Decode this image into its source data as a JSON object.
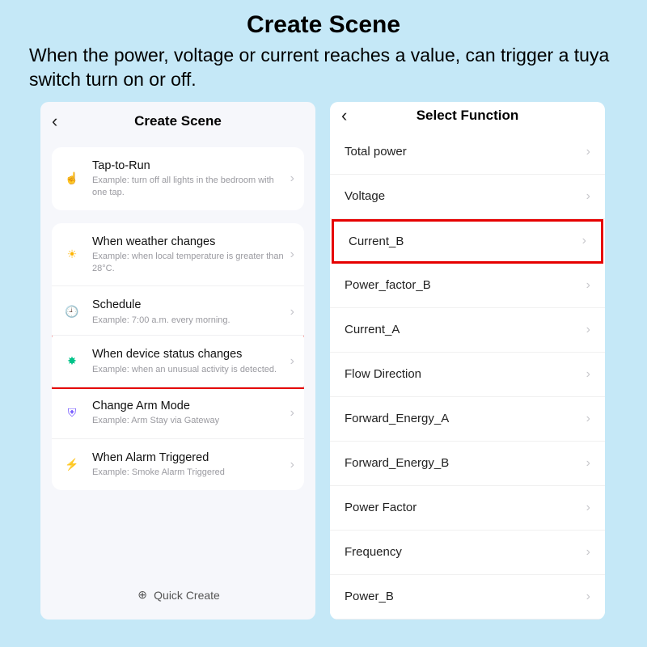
{
  "page": {
    "title": "Create Scene",
    "subtitle": "When the power, voltage or current reaches a value, can trigger a tuya switch turn on or off."
  },
  "colors": {
    "bg": "#c5e8f7",
    "highlight": "#e60000"
  },
  "left": {
    "header": "Create Scene",
    "quick_create": "Quick Create",
    "group1": [
      {
        "title": "Tap-to-Run",
        "sub": "Example: turn off all lights in the bedroom with one tap.",
        "icon": "tap",
        "icon_color": "#ff7a45"
      }
    ],
    "group2": [
      {
        "title": "When weather changes",
        "sub": "Example: when local temperature is greater than 28°C.",
        "icon": "sun",
        "icon_color": "#ffb400",
        "highlight": false
      },
      {
        "title": "Schedule",
        "sub": "Example: 7:00 a.m. every morning.",
        "icon": "clock",
        "icon_color": "#3d7eff",
        "highlight": false
      },
      {
        "title": "When device status changes",
        "sub": "Example: when an unusual activity is detected.",
        "icon": "device",
        "icon_color": "#00c389",
        "highlight": true
      },
      {
        "title": "Change Arm Mode",
        "sub": "Example: Arm Stay via Gateway",
        "icon": "shield",
        "icon_color": "#6b4eff",
        "highlight": false
      },
      {
        "title": "When Alarm Triggered",
        "sub": "Example: Smoke Alarm Triggered",
        "icon": "alarm",
        "icon_color": "#ff3b30",
        "highlight": false
      }
    ]
  },
  "right": {
    "header": "Select Function",
    "items": [
      {
        "label": "Total power",
        "highlight": false
      },
      {
        "label": "Voltage",
        "highlight": false
      },
      {
        "label": "Current_B",
        "highlight": true
      },
      {
        "label": "Power_factor_B",
        "highlight": false
      },
      {
        "label": "Current_A",
        "highlight": false
      },
      {
        "label": "Flow Direction",
        "highlight": false
      },
      {
        "label": "Forward_Energy_A",
        "highlight": false
      },
      {
        "label": "Forward_Energy_B",
        "highlight": false
      },
      {
        "label": "Power Factor",
        "highlight": false
      },
      {
        "label": "Frequency",
        "highlight": false
      },
      {
        "label": "Power_B",
        "highlight": false
      }
    ]
  },
  "icons": {
    "tap": "☝",
    "sun": "☀",
    "clock": "🕘",
    "device": "✸",
    "shield": "⛨",
    "alarm": "⚡"
  }
}
